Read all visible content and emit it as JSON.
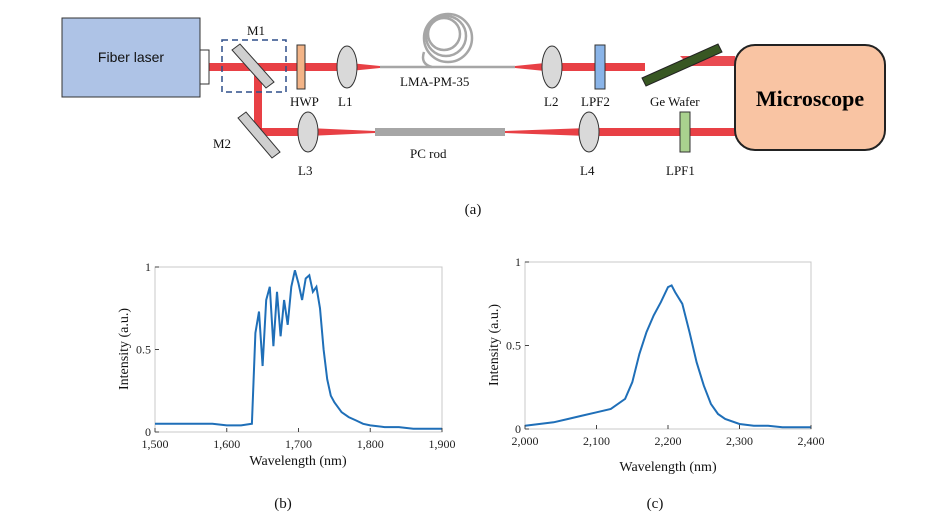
{
  "diagram": {
    "fiber_laser": "Fiber laser",
    "microscope": "Microscope",
    "m1": "M1",
    "m2": "M2",
    "hwp": "HWP",
    "l1": "L1",
    "l2": "L2",
    "l3": "L3",
    "l4": "L4",
    "fiber": "LMA-PM-35",
    "lpf2": "LPF2",
    "lpf1": "LPF1",
    "ge_wafer": "Ge Wafer",
    "pc_rod": "PC rod",
    "caption": "(a)",
    "colors": {
      "beam": "#e41e25",
      "laser_box": "#aec3e6",
      "microscope_box": "#f9c4a3",
      "hwp": "#f3b487",
      "lpf2": "#8ab4e8",
      "lpf1": "#a9d18e",
      "ge_wafer": "#385723"
    }
  },
  "chart_data": [
    {
      "type": "line",
      "caption": "(b)",
      "xlabel": "Wavelength (nm)",
      "ylabel": "Intensity (a.u.)",
      "xlim": [
        1500,
        1900
      ],
      "ylim": [
        0,
        1
      ],
      "xticks": [
        "1,500",
        "1,600",
        "1,700",
        "1,800",
        "1,900"
      ],
      "yticks": [
        "0",
        "0.5",
        "1"
      ],
      "color": "#1f6fb8",
      "x": [
        1500,
        1520,
        1540,
        1560,
        1580,
        1600,
        1620,
        1635,
        1640,
        1645,
        1650,
        1655,
        1660,
        1665,
        1670,
        1675,
        1680,
        1685,
        1690,
        1695,
        1700,
        1705,
        1710,
        1715,
        1720,
        1725,
        1730,
        1735,
        1740,
        1745,
        1750,
        1760,
        1770,
        1780,
        1790,
        1800,
        1820,
        1840,
        1860,
        1880,
        1900
      ],
      "y": [
        0.05,
        0.05,
        0.05,
        0.05,
        0.05,
        0.04,
        0.04,
        0.05,
        0.6,
        0.73,
        0.4,
        0.8,
        0.88,
        0.52,
        0.85,
        0.58,
        0.8,
        0.65,
        0.88,
        0.98,
        0.9,
        0.8,
        0.93,
        0.95,
        0.85,
        0.88,
        0.75,
        0.5,
        0.32,
        0.22,
        0.18,
        0.12,
        0.09,
        0.07,
        0.05,
        0.04,
        0.03,
        0.03,
        0.02,
        0.02,
        0.02
      ]
    },
    {
      "type": "line",
      "caption": "(c)",
      "xlabel": "Wavelength (nm)",
      "ylabel": "Intensity (a.u.)",
      "xlim": [
        2000,
        2400
      ],
      "ylim": [
        0,
        1
      ],
      "xticks": [
        "2,000",
        "2,100",
        "2,200",
        "2,300",
        "2,400"
      ],
      "yticks": [
        "0",
        "0.5",
        "1"
      ],
      "color": "#1f6fb8",
      "x": [
        2000,
        2020,
        2040,
        2060,
        2080,
        2100,
        2120,
        2140,
        2150,
        2160,
        2170,
        2180,
        2190,
        2200,
        2205,
        2210,
        2220,
        2230,
        2240,
        2250,
        2260,
        2270,
        2280,
        2300,
        2320,
        2340,
        2360,
        2380,
        2400
      ],
      "y": [
        0.02,
        0.03,
        0.04,
        0.06,
        0.08,
        0.1,
        0.12,
        0.18,
        0.28,
        0.45,
        0.58,
        0.68,
        0.76,
        0.85,
        0.86,
        0.82,
        0.75,
        0.58,
        0.4,
        0.26,
        0.15,
        0.09,
        0.06,
        0.03,
        0.02,
        0.02,
        0.01,
        0.01,
        0.01
      ]
    }
  ]
}
